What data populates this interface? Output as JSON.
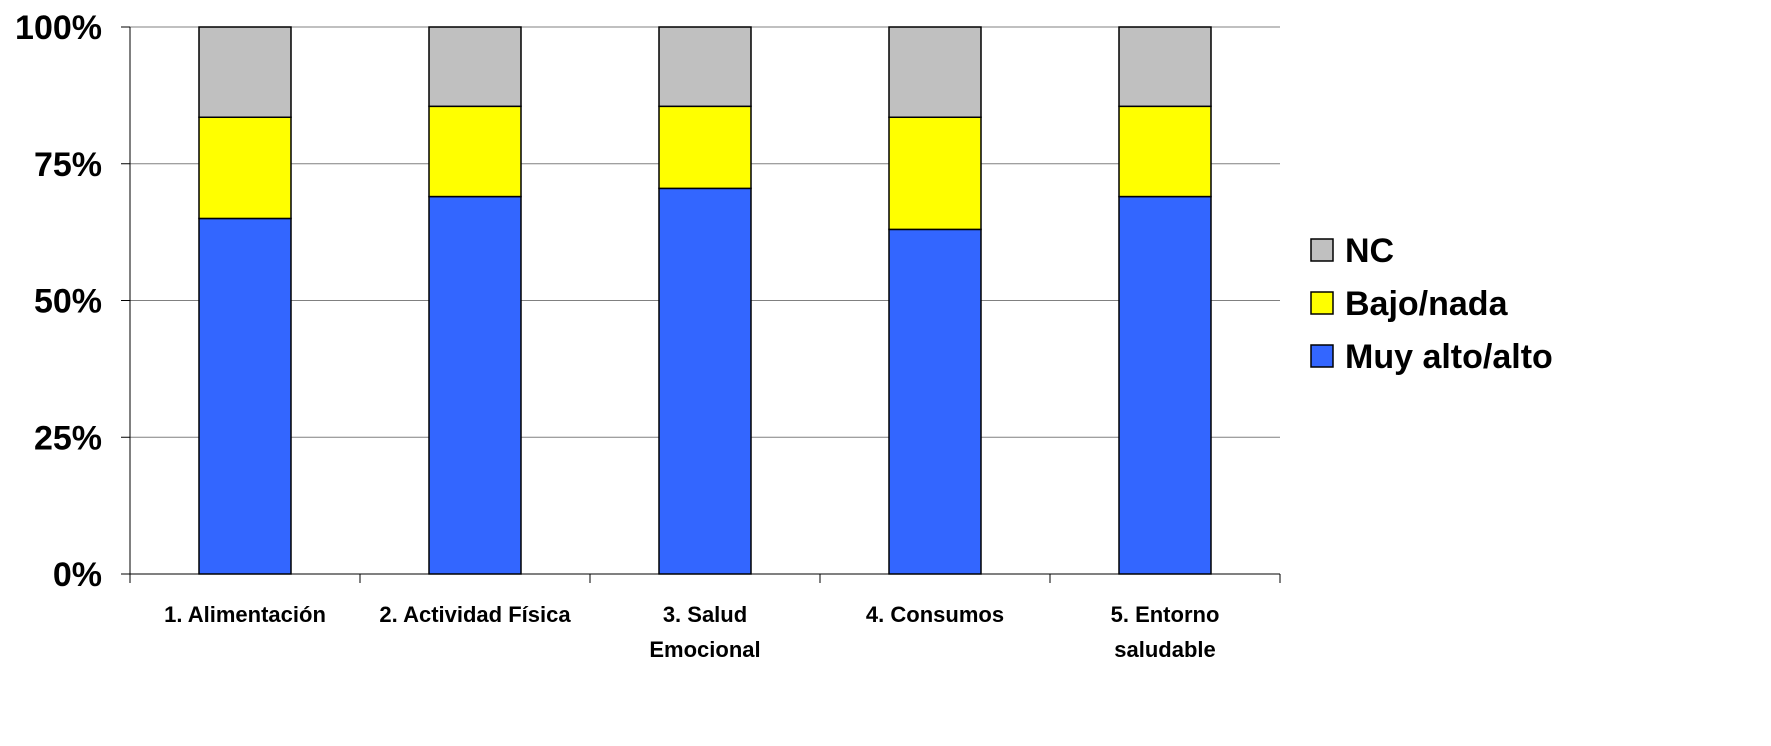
{
  "chart_data": {
    "type": "bar",
    "stacked": true,
    "normalized": true,
    "categories": [
      [
        "1. Alimentación"
      ],
      [
        "2. Actividad Física"
      ],
      [
        "3. Salud",
        "Emocional"
      ],
      [
        "4. Consumos"
      ],
      [
        "5. Entorno",
        "saludable"
      ]
    ],
    "series": [
      {
        "name": "Muy alto/alto",
        "color": "#3366FF",
        "values": [
          65,
          69,
          70.5,
          63,
          69
        ]
      },
      {
        "name": "Bajo/nada",
        "color": "#FFFF00",
        "values": [
          18.5,
          16.5,
          15,
          20.5,
          16.5
        ]
      },
      {
        "name": "NC",
        "color": "#C0C0C0",
        "values": [
          16.5,
          14.5,
          14.5,
          16.5,
          14.5
        ]
      }
    ],
    "ylim": [
      0,
      100
    ],
    "yticks": [
      "0%",
      "25%",
      "50%",
      "75%",
      "100%"
    ],
    "ytick_values": [
      0,
      25,
      50,
      75,
      100
    ],
    "grid": true,
    "legend": {
      "position": "right",
      "order": [
        "NC",
        "Bajo/nada",
        "Muy alto/alto"
      ]
    },
    "title": "",
    "xlabel": "",
    "ylabel": ""
  }
}
